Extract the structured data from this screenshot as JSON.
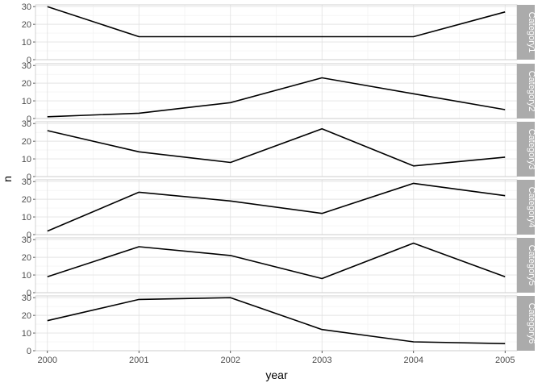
{
  "chart_data": {
    "type": "line",
    "facet": "rows",
    "xlabel": "year",
    "ylabel": "n",
    "x": [
      2000,
      2001,
      2002,
      2003,
      2004,
      2005
    ],
    "xlim": [
      1999.87,
      2005.13
    ],
    "ylim": [
      0,
      31
    ],
    "yticks": [
      0,
      10,
      20,
      30
    ],
    "grid": true,
    "line_color": "#000000",
    "strip_color": "#ababab",
    "panels": [
      {
        "label": "Category1",
        "values": [
          30,
          13,
          13,
          13,
          13,
          27
        ]
      },
      {
        "label": "Category2",
        "values": [
          1,
          3,
          9,
          23,
          14,
          5
        ]
      },
      {
        "label": "Category3",
        "values": [
          26,
          14,
          8,
          27,
          6,
          11
        ]
      },
      {
        "label": "Category4",
        "values": [
          2,
          24,
          19,
          12,
          29,
          22
        ]
      },
      {
        "label": "Category5",
        "values": [
          9,
          26,
          21,
          8,
          28,
          9
        ]
      },
      {
        "label": "Category6",
        "values": [
          17,
          29,
          30,
          12,
          5,
          4
        ]
      }
    ]
  }
}
